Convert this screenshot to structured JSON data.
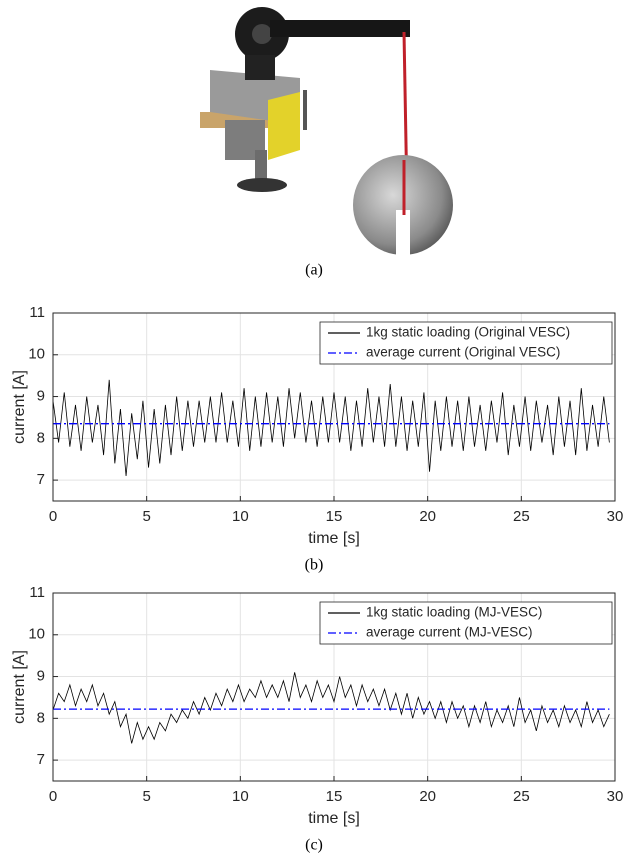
{
  "figure": {
    "caption": "(a)"
  },
  "chart_data": [
    {
      "type": "line",
      "caption": "(b)",
      "xlabel": "time [s]",
      "ylabel": "current [A]",
      "xlim": [
        0,
        30
      ],
      "ylim": [
        6.5,
        11
      ],
      "xticks": [
        0,
        5,
        10,
        15,
        20,
        25,
        30
      ],
      "yticks": [
        7,
        8,
        9,
        10,
        11
      ],
      "grid": true,
      "legend": "upper right",
      "series": [
        {
          "name": "1kg static loading (Original VESC)",
          "color": "#000000",
          "linestyle": "-",
          "x": [
            0,
            0.3,
            0.6,
            0.9,
            1.2,
            1.5,
            1.8,
            2.1,
            2.4,
            2.7,
            3,
            3.3,
            3.6,
            3.9,
            4.2,
            4.5,
            4.8,
            5.1,
            5.4,
            5.7,
            6,
            6.3,
            6.6,
            6.9,
            7.2,
            7.5,
            7.8,
            8.1,
            8.4,
            8.7,
            9,
            9.3,
            9.6,
            9.9,
            10.2,
            10.5,
            10.8,
            11.1,
            11.4,
            11.7,
            12,
            12.3,
            12.6,
            12.9,
            13.2,
            13.5,
            13.8,
            14.1,
            14.4,
            14.7,
            15,
            15.3,
            15.6,
            15.9,
            16.2,
            16.5,
            16.8,
            17.1,
            17.4,
            17.7,
            18,
            18.3,
            18.6,
            18.9,
            19.2,
            19.5,
            19.8,
            20.1,
            20.4,
            20.7,
            21,
            21.3,
            21.6,
            21.9,
            22.2,
            22.5,
            22.8,
            23.1,
            23.4,
            23.7,
            24,
            24.3,
            24.6,
            24.9,
            25.2,
            25.5,
            25.8,
            26.1,
            26.4,
            26.7,
            27,
            27.3,
            27.6,
            27.9,
            28.2,
            28.5,
            28.8,
            29.1,
            29.4,
            29.7
          ],
          "values": [
            8.9,
            7.9,
            9.1,
            7.8,
            8.8,
            7.7,
            9.0,
            7.9,
            8.8,
            7.6,
            9.4,
            7.4,
            8.7,
            7.1,
            8.6,
            7.5,
            8.9,
            7.3,
            8.7,
            7.4,
            8.8,
            7.6,
            9.0,
            7.7,
            8.9,
            7.8,
            8.9,
            7.9,
            9.0,
            7.9,
            9.1,
            7.9,
            8.9,
            7.8,
            9.2,
            7.7,
            9.0,
            7.8,
            9.1,
            7.9,
            9.0,
            7.8,
            9.2,
            8.0,
            9.1,
            7.9,
            8.9,
            7.8,
            9.0,
            7.9,
            9.1,
            7.9,
            9.0,
            7.7,
            8.9,
            7.8,
            9.2,
            7.9,
            9.0,
            7.8,
            9.3,
            7.8,
            9.0,
            7.7,
            8.9,
            7.8,
            9.1,
            7.2,
            8.9,
            7.7,
            9.0,
            7.8,
            8.9,
            7.7,
            9.0,
            7.8,
            8.8,
            7.7,
            8.9,
            7.9,
            9.1,
            7.6,
            8.8,
            7.8,
            9.0,
            7.7,
            8.9,
            7.9,
            8.8,
            7.6,
            9.0,
            7.8,
            8.9,
            7.6,
            9.2,
            7.7,
            8.8,
            7.8,
            9.0,
            7.9
          ]
        },
        {
          "name": "average current (Original VESC)",
          "color": "#0000ff",
          "linestyle": "-.",
          "x": [
            0,
            29.7
          ],
          "values": [
            8.35,
            8.35
          ]
        }
      ]
    },
    {
      "type": "line",
      "caption": "(c)",
      "xlabel": "time [s]",
      "ylabel": "current [A]",
      "xlim": [
        0,
        30
      ],
      "ylim": [
        6.5,
        11
      ],
      "xticks": [
        0,
        5,
        10,
        15,
        20,
        25,
        30
      ],
      "yticks": [
        7,
        8,
        9,
        10,
        11
      ],
      "grid": true,
      "legend": "upper right",
      "series": [
        {
          "name": "1kg static loading (MJ-VESC)",
          "color": "#000000",
          "linestyle": "-",
          "x": [
            0,
            0.3,
            0.6,
            0.9,
            1.2,
            1.5,
            1.8,
            2.1,
            2.4,
            2.7,
            3,
            3.3,
            3.6,
            3.9,
            4.2,
            4.5,
            4.8,
            5.1,
            5.4,
            5.7,
            6,
            6.3,
            6.6,
            6.9,
            7.2,
            7.5,
            7.8,
            8.1,
            8.4,
            8.7,
            9,
            9.3,
            9.6,
            9.9,
            10.2,
            10.5,
            10.8,
            11.1,
            11.4,
            11.7,
            12,
            12.3,
            12.6,
            12.9,
            13.2,
            13.5,
            13.8,
            14.1,
            14.4,
            14.7,
            15,
            15.3,
            15.6,
            15.9,
            16.2,
            16.5,
            16.8,
            17.1,
            17.4,
            17.7,
            18,
            18.3,
            18.6,
            18.9,
            19.2,
            19.5,
            19.8,
            20.1,
            20.4,
            20.7,
            21,
            21.3,
            21.6,
            21.9,
            22.2,
            22.5,
            22.8,
            23.1,
            23.4,
            23.7,
            24,
            24.3,
            24.6,
            24.9,
            25.2,
            25.5,
            25.8,
            26.1,
            26.4,
            26.7,
            27,
            27.3,
            27.6,
            27.9,
            28.2,
            28.5,
            28.8,
            29.1,
            29.4,
            29.7
          ],
          "values": [
            8.2,
            8.6,
            8.4,
            8.8,
            8.3,
            8.7,
            8.4,
            8.8,
            8.3,
            8.6,
            8.1,
            8.4,
            7.8,
            8.1,
            7.4,
            7.9,
            7.5,
            7.8,
            7.5,
            7.9,
            7.7,
            8.1,
            7.9,
            8.2,
            8.0,
            8.4,
            8.1,
            8.5,
            8.2,
            8.6,
            8.3,
            8.7,
            8.4,
            8.8,
            8.4,
            8.7,
            8.5,
            8.9,
            8.5,
            8.8,
            8.5,
            8.9,
            8.4,
            9.1,
            8.5,
            8.8,
            8.4,
            8.9,
            8.5,
            8.8,
            8.4,
            9.0,
            8.5,
            8.8,
            8.3,
            8.8,
            8.4,
            8.7,
            8.3,
            8.7,
            8.2,
            8.6,
            8.1,
            8.6,
            8.0,
            8.5,
            8.1,
            8.4,
            8.0,
            8.4,
            7.9,
            8.4,
            8.0,
            8.3,
            7.8,
            8.3,
            7.9,
            8.4,
            7.8,
            8.2,
            7.9,
            8.3,
            7.8,
            8.5,
            7.9,
            8.2,
            7.7,
            8.3,
            7.9,
            8.2,
            7.8,
            8.3,
            7.9,
            8.2,
            7.8,
            8.4,
            7.9,
            8.2,
            7.8,
            8.1
          ]
        },
        {
          "name": "average current (MJ-VESC)",
          "color": "#0000ff",
          "linestyle": "-.",
          "x": [
            0,
            29.7
          ],
          "values": [
            8.22,
            8.22
          ]
        }
      ]
    }
  ]
}
